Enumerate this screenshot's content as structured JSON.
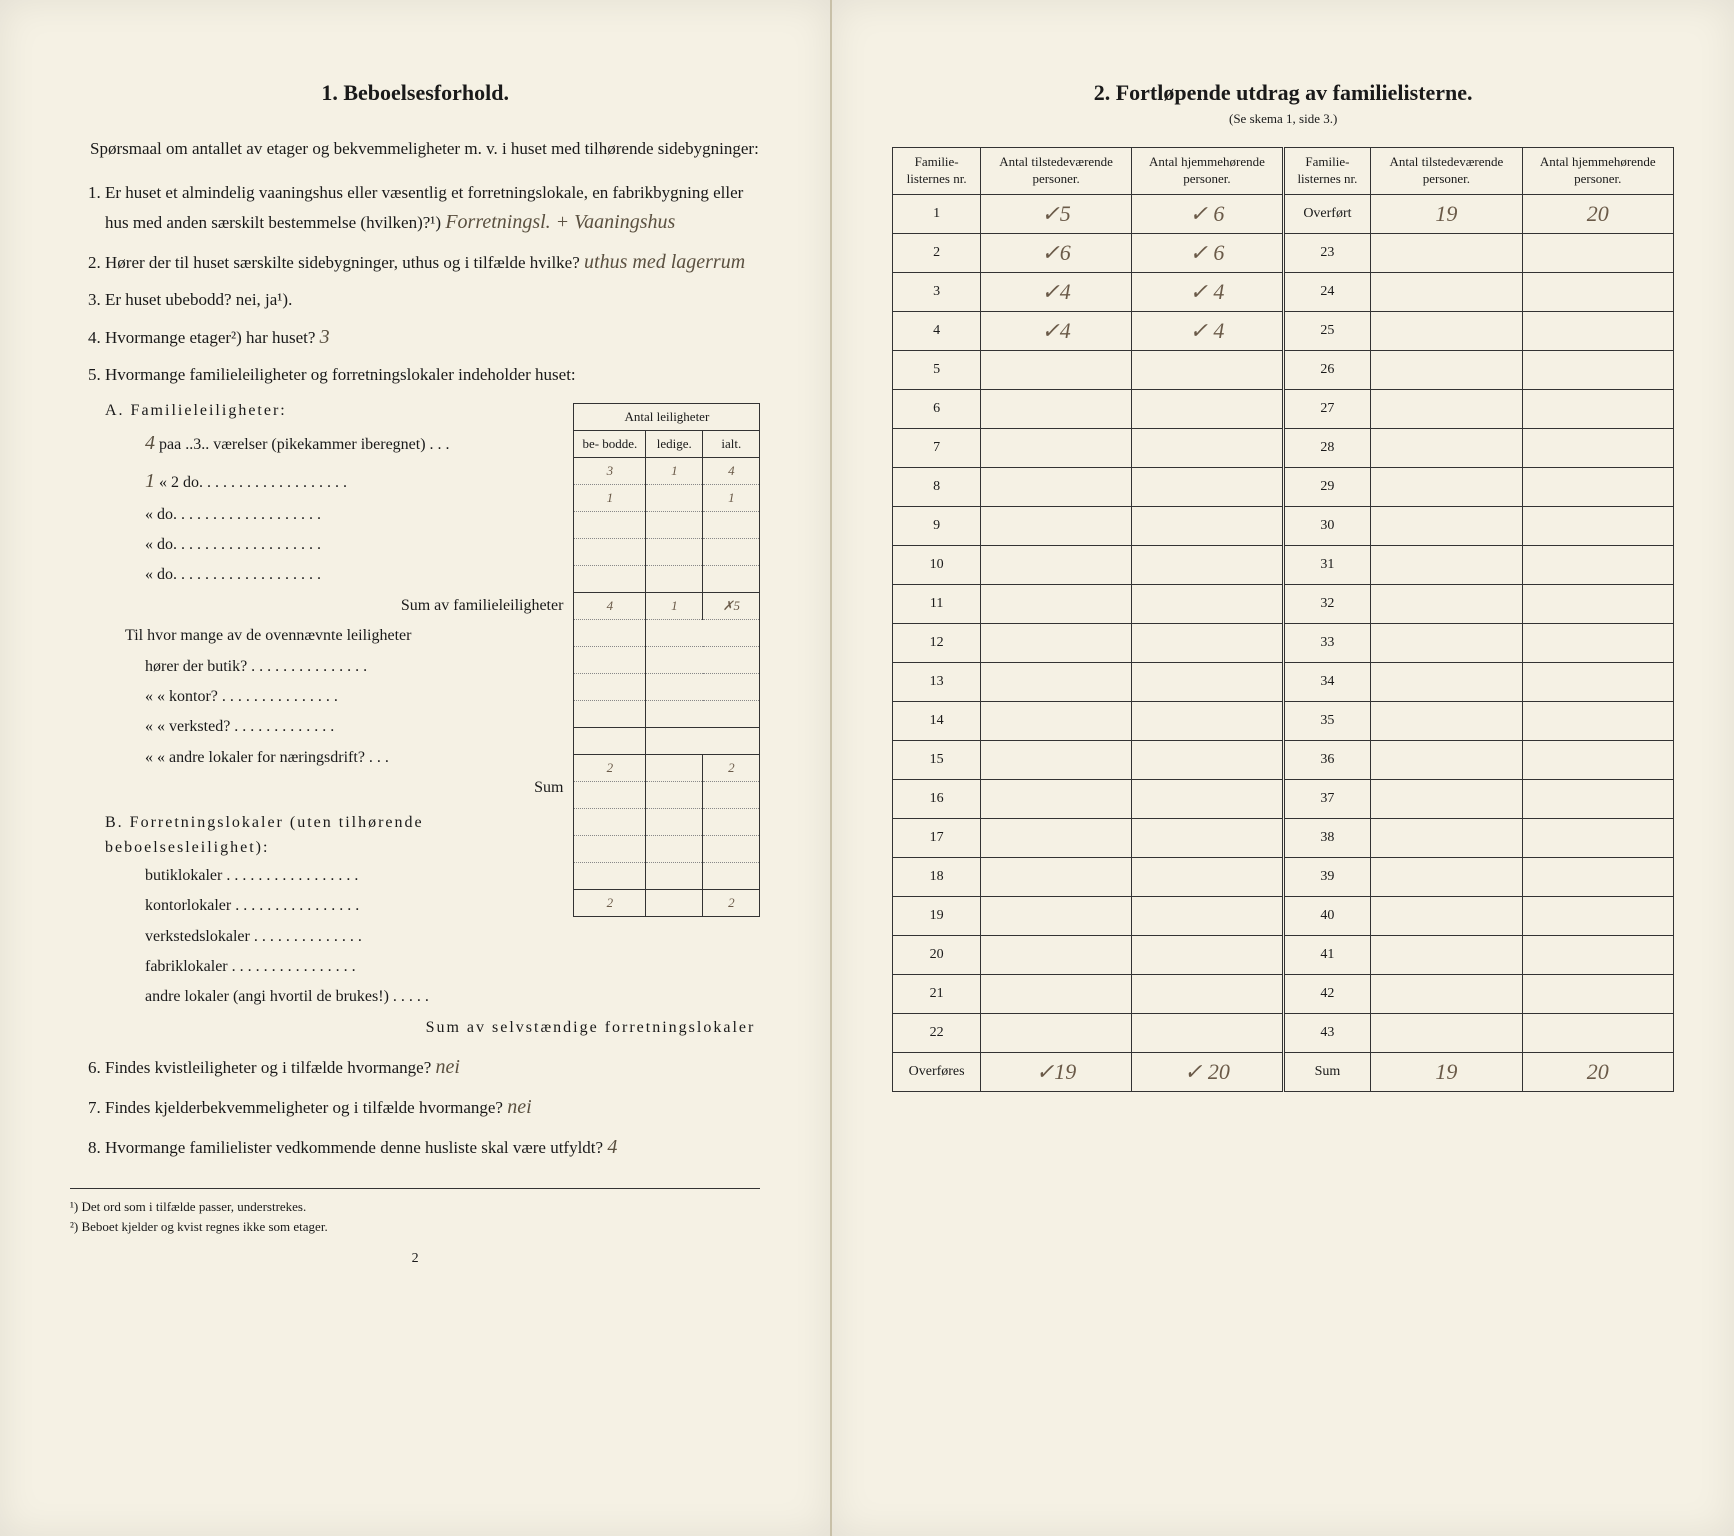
{
  "left": {
    "title": "1.   Beboelsesforhold.",
    "intro": "Spørsmaal om antallet av etager og bekvemmeligheter m. v. i huset med tilhørende sidebygninger:",
    "q1": "Er huset et almindelig vaaningshus eller væsentlig et forretningslokale, en fabrikbygning eller hus med anden særskilt bestemmelse (hvilken)?¹)",
    "q1_answer": "Forretningsl. + Vaaningshus",
    "q2": "Hører der til huset særskilte sidebygninger, uthus og i tilfælde hvilke?",
    "q2_answer": "uthus med lagerrum",
    "q3": "Er huset ubebodd? nei,  ja¹).",
    "q4": "Hvormange etager²) har huset?",
    "q4_answer": "3",
    "q5": "Hvormange familieleiligheter og forretningslokaler indeholder huset:",
    "apts_header_top": "Antal leiligheter",
    "apts_headers": [
      "be-\nbodde.",
      "ledige.",
      "ialt."
    ],
    "sectionA_title": "A. Familieleiligheter:",
    "sectionA_rows": [
      {
        "prefix": "4",
        "label": "paa ..3.. værelser (pikekammer iberegnet) . . .",
        "vals": [
          "3",
          "1",
          "4"
        ]
      },
      {
        "prefix": "1",
        "label": "«  2      do.   . . . . . . . . . . . . . . . . . .",
        "vals": [
          "1",
          "",
          "1"
        ]
      },
      {
        "prefix": "",
        "label": "«          do.   . . . . . . . . . . . . . . . . . .",
        "vals": [
          "",
          "",
          ""
        ]
      },
      {
        "prefix": "",
        "label": "«          do.   . . . . . . . . . . . . . . . . . .",
        "vals": [
          "",
          "",
          ""
        ]
      },
      {
        "prefix": "",
        "label": "«          do.   . . . . . . . . . . . . . . . . . .",
        "vals": [
          "",
          "",
          ""
        ]
      }
    ],
    "sumA_label": "Sum av familieleiligheter",
    "sumA_vals": [
      "4",
      "1",
      "✗5"
    ],
    "butik_intro": "Til hvor mange av de ovennævnte leiligheter",
    "butik_rows": [
      "hører der butik? . . . . . . . . . . . . . . .",
      "«      «   kontor? . . . . . . . . . . . . . . .",
      "«      «   verksted? . . . . . . . . . . . . .",
      "«      «   andre lokaler for næringsdrift? . . ."
    ],
    "butik_sum": "Sum",
    "sectionB_title": "B. Forretningslokaler (uten tilhørende beboelsesleilighet):",
    "sectionB_rows": [
      {
        "label": "butiklokaler . . . . . . . . . . . . . . . . .",
        "vals": [
          "2",
          "",
          "2"
        ]
      },
      {
        "label": "kontorlokaler . . . . . . . . . . . . . . . .",
        "vals": [
          "",
          "",
          ""
        ]
      },
      {
        "label": "verkstedslokaler . . . . . . . . . . . . . .",
        "vals": [
          "",
          "",
          ""
        ]
      },
      {
        "label": "fabriklokaler . . . . . . . . . . . . . . . .",
        "vals": [
          "",
          "",
          ""
        ]
      },
      {
        "label": "andre lokaler (angi hvortil de brukes!) . . . . .",
        "vals": [
          "",
          "",
          ""
        ]
      }
    ],
    "sumB_label": "Sum av selvstændige forretningslokaler",
    "sumB_vals": [
      "2",
      "",
      "2"
    ],
    "q6": "Findes kvistleiligheter og i tilfælde hvormange?",
    "q6_answer": "nei",
    "q7": "Findes kjelderbekvemmeligheter og i tilfælde hvormange?",
    "q7_answer": "nei",
    "q8": "Hvormange familielister vedkommende denne husliste skal være utfyldt?",
    "q8_answer": "4",
    "footnote1": "¹) Det ord som i tilfælde passer, understrekes.",
    "footnote2": "²) Beboet kjelder og kvist regnes ikke som etager.",
    "page_num": "2"
  },
  "right": {
    "title": "2.   Fortløpende utdrag av familielisterne.",
    "subtitle": "(Se skema 1, side 3.)",
    "headers": [
      "Familie-\nlisternes\nnr.",
      "Antal\ntilstedeværende\npersoner.",
      "Antal\nhjemmehørende\npersoner.",
      "Familie-\nlisternes\nnr.",
      "Antal\ntilstedeværende\npersoner.",
      "Antal\nhjemmehørende\npersoner."
    ],
    "rows": [
      {
        "l_nr": "1",
        "l_t": "✓5",
        "l_h": "✓ 6",
        "r_nr": "Overført",
        "r_t": "19",
        "r_h": "20"
      },
      {
        "l_nr": "2",
        "l_t": "✓6",
        "l_h": "✓ 6",
        "r_nr": "23",
        "r_t": "",
        "r_h": ""
      },
      {
        "l_nr": "3",
        "l_t": "✓4",
        "l_h": "✓ 4",
        "r_nr": "24",
        "r_t": "",
        "r_h": ""
      },
      {
        "l_nr": "4",
        "l_t": "✓4",
        "l_h": "✓ 4",
        "r_nr": "25",
        "r_t": "",
        "r_h": ""
      },
      {
        "l_nr": "5",
        "l_t": "",
        "l_h": "",
        "r_nr": "26",
        "r_t": "",
        "r_h": ""
      },
      {
        "l_nr": "6",
        "l_t": "",
        "l_h": "",
        "r_nr": "27",
        "r_t": "",
        "r_h": ""
      },
      {
        "l_nr": "7",
        "l_t": "",
        "l_h": "",
        "r_nr": "28",
        "r_t": "",
        "r_h": ""
      },
      {
        "l_nr": "8",
        "l_t": "",
        "l_h": "",
        "r_nr": "29",
        "r_t": "",
        "r_h": ""
      },
      {
        "l_nr": "9",
        "l_t": "",
        "l_h": "",
        "r_nr": "30",
        "r_t": "",
        "r_h": ""
      },
      {
        "l_nr": "10",
        "l_t": "",
        "l_h": "",
        "r_nr": "31",
        "r_t": "",
        "r_h": ""
      },
      {
        "l_nr": "11",
        "l_t": "",
        "l_h": "",
        "r_nr": "32",
        "r_t": "",
        "r_h": ""
      },
      {
        "l_nr": "12",
        "l_t": "",
        "l_h": "",
        "r_nr": "33",
        "r_t": "",
        "r_h": ""
      },
      {
        "l_nr": "13",
        "l_t": "",
        "l_h": "",
        "r_nr": "34",
        "r_t": "",
        "r_h": ""
      },
      {
        "l_nr": "14",
        "l_t": "",
        "l_h": "",
        "r_nr": "35",
        "r_t": "",
        "r_h": ""
      },
      {
        "l_nr": "15",
        "l_t": "",
        "l_h": "",
        "r_nr": "36",
        "r_t": "",
        "r_h": ""
      },
      {
        "l_nr": "16",
        "l_t": "",
        "l_h": "",
        "r_nr": "37",
        "r_t": "",
        "r_h": ""
      },
      {
        "l_nr": "17",
        "l_t": "",
        "l_h": "",
        "r_nr": "38",
        "r_t": "",
        "r_h": ""
      },
      {
        "l_nr": "18",
        "l_t": "",
        "l_h": "",
        "r_nr": "39",
        "r_t": "",
        "r_h": ""
      },
      {
        "l_nr": "19",
        "l_t": "",
        "l_h": "",
        "r_nr": "40",
        "r_t": "",
        "r_h": ""
      },
      {
        "l_nr": "20",
        "l_t": "",
        "l_h": "",
        "r_nr": "41",
        "r_t": "",
        "r_h": ""
      },
      {
        "l_nr": "21",
        "l_t": "",
        "l_h": "",
        "r_nr": "42",
        "r_t": "",
        "r_h": ""
      },
      {
        "l_nr": "22",
        "l_t": "",
        "l_h": "",
        "r_nr": "43",
        "r_t": "",
        "r_h": ""
      }
    ],
    "footer": {
      "l_nr": "Overføres",
      "l_t": "✓19",
      "l_h": "✓ 20",
      "r_nr": "Sum",
      "r_t": "19",
      "r_h": "20"
    }
  }
}
